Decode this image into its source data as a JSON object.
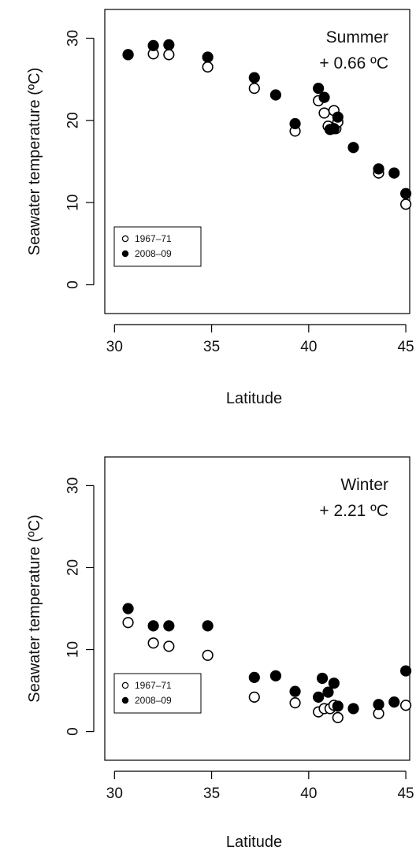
{
  "chart_data": [
    {
      "type": "scatter",
      "xlabel": "Latitude",
      "ylabel": "Seawater temperature (ºC)",
      "xlim": [
        29.5,
        45.2
      ],
      "ylim": [
        -3.5,
        33.5
      ],
      "xticks": [
        30,
        35,
        40,
        45
      ],
      "xtick_labels": [
        "30",
        "35",
        "40",
        "45"
      ],
      "yticks": [
        0,
        10,
        20,
        30
      ],
      "ytick_labels": [
        "0",
        "10",
        "20",
        "30"
      ],
      "grid": false,
      "legend_position": "bottom-left",
      "annotation": [
        "Summer",
        "+ 0.66 ºC"
      ],
      "series": [
        {
          "name": "1967–71",
          "marker": "open-circle",
          "color": "#000000",
          "x": [
            30.7,
            32.0,
            32.8,
            34.8,
            37.2,
            39.3,
            40.5,
            40.8,
            41.0,
            41.3,
            41.4,
            41.5,
            43.6,
            45.0
          ],
          "y": [
            28.0,
            28.1,
            28.0,
            26.5,
            23.9,
            18.7,
            22.4,
            20.9,
            19.3,
            21.2,
            19.0,
            19.8,
            13.6,
            9.8
          ]
        },
        {
          "name": "2008–09",
          "marker": "filled-circle",
          "color": "#000000",
          "x": [
            30.7,
            32.0,
            32.8,
            34.8,
            37.2,
            38.3,
            39.3,
            40.5,
            40.8,
            41.1,
            41.3,
            41.5,
            42.3,
            43.6,
            44.4,
            45.0
          ],
          "y": [
            28.0,
            29.1,
            29.2,
            27.7,
            25.2,
            23.1,
            19.6,
            23.9,
            22.8,
            18.9,
            19.0,
            20.4,
            16.7,
            14.1,
            13.6,
            11.1
          ]
        }
      ]
    },
    {
      "type": "scatter",
      "xlabel": "Latitude",
      "ylabel": "Seawater temperature (ºC)",
      "xlim": [
        29.5,
        45.2
      ],
      "ylim": [
        -3.5,
        33.5
      ],
      "xticks": [
        30,
        35,
        40,
        45
      ],
      "xtick_labels": [
        "30",
        "35",
        "40",
        "45"
      ],
      "yticks": [
        0,
        10,
        20,
        30
      ],
      "ytick_labels": [
        "0",
        "10",
        "20",
        "30"
      ],
      "grid": false,
      "legend_position": "bottom-left",
      "annotation": [
        "Winter",
        "+ 2.21 ºC"
      ],
      "series": [
        {
          "name": "1967–71",
          "marker": "open-circle",
          "color": "#000000",
          "x": [
            30.7,
            32.0,
            32.8,
            34.8,
            37.2,
            39.3,
            40.5,
            40.8,
            41.1,
            41.3,
            41.5,
            43.6,
            45.0
          ],
          "y": [
            13.3,
            10.8,
            10.4,
            9.3,
            4.2,
            3.5,
            2.4,
            2.8,
            2.8,
            3.2,
            1.7,
            2.2,
            3.2
          ]
        },
        {
          "name": "2008–09",
          "marker": "filled-circle",
          "color": "#000000",
          "x": [
            30.7,
            32.0,
            32.8,
            34.8,
            37.2,
            38.3,
            39.3,
            40.5,
            40.7,
            41.0,
            41.3,
            41.5,
            42.3,
            43.6,
            44.4,
            45.0
          ],
          "y": [
            15.0,
            12.9,
            12.9,
            12.9,
            6.6,
            6.8,
            4.9,
            4.2,
            6.5,
            4.8,
            5.9,
            3.1,
            2.8,
            3.3,
            3.6,
            7.4
          ]
        }
      ]
    }
  ]
}
